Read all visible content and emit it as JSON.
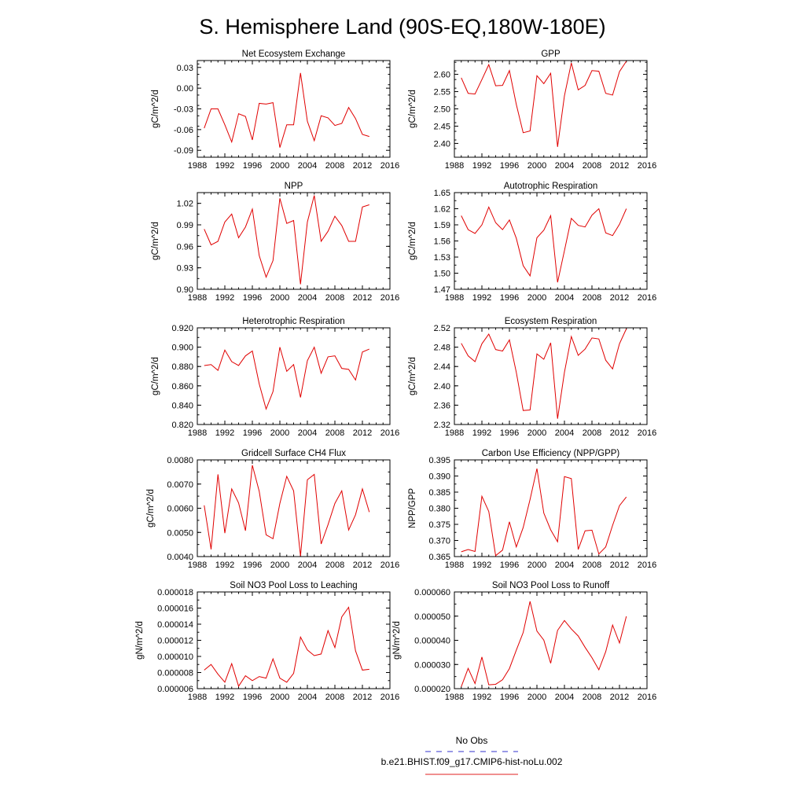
{
  "title": "S. Hemisphere Land (90S-EQ,180W-180E)",
  "legend": {
    "entries": [
      {
        "label": "No Obs",
        "color": "#3333cc",
        "dash": true
      },
      {
        "label": "b.e21.BHIST.f09_g17.CMIP6-hist-noLu.002",
        "color": "#e02020",
        "dash": false
      }
    ]
  },
  "series_color": "#e00000",
  "chart_data": [
    {
      "type": "line",
      "title": "Net Ecosystem Exchange",
      "ylabel": "gC/m^2/d",
      "xlim": [
        1988,
        2016
      ],
      "ylim": [
        -0.1,
        0.04
      ],
      "xticks": [
        "1988",
        "1992",
        "1996",
        "2000",
        "2004",
        "2008",
        "2012",
        "2016"
      ],
      "yticks": [
        "-0.09",
        "-0.06",
        "-0.03",
        "0.00",
        "0.03"
      ],
      "ytick_values": [
        -0.09,
        -0.06,
        -0.03,
        0.0,
        0.03
      ],
      "x": [
        1989,
        1990,
        1991,
        1992,
        1993,
        1994,
        1995,
        1996,
        1997,
        1998,
        1999,
        2000,
        2001,
        2002,
        2003,
        2004,
        2005,
        2006,
        2007,
        2008,
        2009,
        2010,
        2011,
        2012,
        2013
      ],
      "values": [
        -0.058,
        -0.03,
        -0.03,
        -0.053,
        -0.078,
        -0.037,
        -0.041,
        -0.075,
        -0.022,
        -0.023,
        -0.021,
        -0.086,
        -0.053,
        -0.053,
        0.022,
        -0.048,
        -0.076,
        -0.04,
        -0.043,
        -0.054,
        -0.051,
        -0.028,
        -0.044,
        -0.067,
        -0.07
      ]
    },
    {
      "type": "line",
      "title": "GPP",
      "ylabel": "gC/m^2/d",
      "xlim": [
        1988,
        2016
      ],
      "ylim": [
        2.36,
        2.64
      ],
      "xticks": [
        "1988",
        "1992",
        "1996",
        "2000",
        "2004",
        "2008",
        "2012",
        "2016"
      ],
      "yticks": [
        "2.40",
        "2.45",
        "2.50",
        "2.55",
        "2.60"
      ],
      "ytick_values": [
        2.4,
        2.45,
        2.5,
        2.55,
        2.6
      ],
      "x": [
        1989,
        1990,
        1991,
        1992,
        1993,
        1994,
        1995,
        1996,
        1997,
        1998,
        1999,
        2000,
        2001,
        2002,
        2003,
        2004,
        2005,
        2006,
        2007,
        2008,
        2009,
        2010,
        2011,
        2012,
        2013
      ],
      "values": [
        2.59,
        2.545,
        2.543,
        2.585,
        2.628,
        2.567,
        2.568,
        2.611,
        2.513,
        2.431,
        2.436,
        2.596,
        2.573,
        2.603,
        2.39,
        2.538,
        2.633,
        2.555,
        2.568,
        2.611,
        2.609,
        2.545,
        2.54,
        2.608,
        2.638
      ]
    },
    {
      "type": "line",
      "title": "NPP",
      "ylabel": "gC/m^2/d",
      "xlim": [
        1988,
        2016
      ],
      "ylim": [
        0.9,
        1.035
      ],
      "xticks": [
        "1988",
        "1992",
        "1996",
        "2000",
        "2004",
        "2008",
        "2012",
        "2016"
      ],
      "yticks": [
        "0.90",
        "0.93",
        "0.96",
        "0.99",
        "1.02"
      ],
      "ytick_values": [
        0.9,
        0.93,
        0.96,
        0.99,
        1.02
      ],
      "x": [
        1989,
        1990,
        1991,
        1992,
        1993,
        1994,
        1995,
        1996,
        1997,
        1998,
        1999,
        2000,
        2001,
        2002,
        2003,
        2004,
        2005,
        2006,
        2007,
        2008,
        2009,
        2010,
        2011,
        2012,
        2013
      ],
      "values": [
        0.984,
        0.962,
        0.967,
        0.994,
        1.005,
        0.972,
        0.987,
        1.012,
        0.947,
        0.917,
        0.94,
        1.027,
        0.992,
        0.996,
        0.907,
        0.994,
        1.031,
        0.967,
        0.981,
        1.002,
        0.989,
        0.967,
        0.967,
        1.015,
        1.018
      ]
    },
    {
      "type": "line",
      "title": "Autotrophic Respiration",
      "ylabel": "gC/m^2/d",
      "xlim": [
        1988,
        2016
      ],
      "ylim": [
        1.47,
        1.65
      ],
      "xticks": [
        "1988",
        "1992",
        "1996",
        "2000",
        "2004",
        "2008",
        "2012",
        "2016"
      ],
      "yticks": [
        "1.47",
        "1.50",
        "1.53",
        "1.56",
        "1.59",
        "1.62",
        "1.65"
      ],
      "ytick_values": [
        1.47,
        1.5,
        1.53,
        1.56,
        1.59,
        1.62,
        1.65
      ],
      "x": [
        1989,
        1990,
        1991,
        1992,
        1993,
        1994,
        1995,
        1996,
        1997,
        1998,
        1999,
        2000,
        2001,
        2002,
        2003,
        2004,
        2005,
        2006,
        2007,
        2008,
        2009,
        2010,
        2011,
        2012,
        2013
      ],
      "values": [
        1.607,
        1.581,
        1.574,
        1.59,
        1.623,
        1.594,
        1.581,
        1.599,
        1.565,
        1.514,
        1.495,
        1.566,
        1.58,
        1.607,
        1.483,
        1.542,
        1.602,
        1.589,
        1.586,
        1.608,
        1.62,
        1.575,
        1.57,
        1.591,
        1.62
      ]
    },
    {
      "type": "line",
      "title": "Heterotrophic Respiration",
      "ylabel": "gC/m^2/d",
      "xlim": [
        1988,
        2016
      ],
      "ylim": [
        0.82,
        0.92
      ],
      "xticks": [
        "1988",
        "1992",
        "1996",
        "2000",
        "2004",
        "2008",
        "2012",
        "2016"
      ],
      "yticks": [
        "0.820",
        "0.840",
        "0.860",
        "0.880",
        "0.900",
        "0.920"
      ],
      "ytick_values": [
        0.82,
        0.84,
        0.86,
        0.88,
        0.9,
        0.92
      ],
      "x": [
        1989,
        1990,
        1991,
        1992,
        1993,
        1994,
        1995,
        1996,
        1997,
        1998,
        1999,
        2000,
        2001,
        2002,
        2003,
        2004,
        2005,
        2006,
        2007,
        2008,
        2009,
        2010,
        2011,
        2012,
        2013
      ],
      "values": [
        0.881,
        0.882,
        0.876,
        0.897,
        0.885,
        0.881,
        0.891,
        0.896,
        0.862,
        0.836,
        0.854,
        0.9,
        0.875,
        0.882,
        0.848,
        0.886,
        0.9,
        0.873,
        0.89,
        0.891,
        0.878,
        0.877,
        0.866,
        0.895,
        0.898
      ]
    },
    {
      "type": "line",
      "title": "Ecosystem Respiration",
      "ylabel": "gC/m^2/d",
      "xlim": [
        1988,
        2016
      ],
      "ylim": [
        2.32,
        2.52
      ],
      "xticks": [
        "1988",
        "1992",
        "1996",
        "2000",
        "2004",
        "2008",
        "2012",
        "2016"
      ],
      "yticks": [
        "2.32",
        "2.36",
        "2.40",
        "2.44",
        "2.48",
        "2.52"
      ],
      "ytick_values": [
        2.32,
        2.36,
        2.4,
        2.44,
        2.48,
        2.52
      ],
      "x": [
        1989,
        1990,
        1991,
        1992,
        1993,
        1994,
        1995,
        1996,
        1997,
        1998,
        1999,
        2000,
        2001,
        2002,
        2003,
        2004,
        2005,
        2006,
        2007,
        2008,
        2009,
        2010,
        2011,
        2012,
        2013
      ],
      "values": [
        2.488,
        2.462,
        2.45,
        2.487,
        2.507,
        2.475,
        2.472,
        2.495,
        2.428,
        2.349,
        2.35,
        2.466,
        2.455,
        2.489,
        2.332,
        2.428,
        2.502,
        2.463,
        2.476,
        2.499,
        2.497,
        2.453,
        2.435,
        2.487,
        2.518
      ]
    },
    {
      "type": "line",
      "title": "Gridcell Surface CH4 Flux",
      "ylabel": "gC/m^2/d",
      "xlim": [
        1988,
        2016
      ],
      "ylim": [
        0.004,
        0.008
      ],
      "xticks": [
        "1988",
        "1992",
        "1996",
        "2000",
        "2004",
        "2008",
        "2012",
        "2016"
      ],
      "yticks": [
        "0.0040",
        "0.0050",
        "0.0060",
        "0.0070",
        "0.0080"
      ],
      "ytick_values": [
        0.004,
        0.005,
        0.006,
        0.007,
        0.008
      ],
      "x": [
        1989,
        1990,
        1991,
        1992,
        1993,
        1994,
        1995,
        1996,
        1997,
        1998,
        1999,
        2000,
        2001,
        2002,
        2003,
        2004,
        2005,
        2006,
        2007,
        2008,
        2009,
        2010,
        2011,
        2012,
        2013
      ],
      "values": [
        0.00612,
        0.0043,
        0.0074,
        0.00497,
        0.0068,
        0.00622,
        0.00507,
        0.00778,
        0.0067,
        0.0049,
        0.00474,
        0.0062,
        0.00732,
        0.00672,
        0.00402,
        0.00718,
        0.0074,
        0.00452,
        0.00532,
        0.0062,
        0.00672,
        0.0051,
        0.00573,
        0.0068,
        0.00584
      ]
    },
    {
      "type": "line",
      "title": "Carbon Use Efficiency (NPP/GPP)",
      "ylabel": "NPP/GPP",
      "xlim": [
        1988,
        2016
      ],
      "ylim": [
        0.365,
        0.395
      ],
      "xticks": [
        "1988",
        "1992",
        "1996",
        "2000",
        "2004",
        "2008",
        "2012",
        "2016"
      ],
      "yticks": [
        "0.365",
        "0.370",
        "0.375",
        "0.380",
        "0.385",
        "0.390",
        "0.395"
      ],
      "ytick_values": [
        0.365,
        0.37,
        0.375,
        0.38,
        0.385,
        0.39,
        0.395
      ],
      "x": [
        1989,
        1990,
        1991,
        1992,
        1993,
        1994,
        1995,
        1996,
        1997,
        1998,
        1999,
        2000,
        2001,
        2002,
        2003,
        2004,
        2005,
        2006,
        2007,
        2008,
        2009,
        2010,
        2011,
        2012,
        2013
      ],
      "values": [
        0.3665,
        0.3672,
        0.3666,
        0.3837,
        0.379,
        0.3653,
        0.367,
        0.3758,
        0.368,
        0.374,
        0.3827,
        0.3923,
        0.3785,
        0.3733,
        0.3696,
        0.3898,
        0.3892,
        0.3672,
        0.373,
        0.3732,
        0.3658,
        0.368,
        0.3747,
        0.3808,
        0.3835
      ]
    },
    {
      "type": "line",
      "title": "Soil NO3 Pool Loss to Leaching",
      "ylabel": "gN/m^2/d",
      "xlim": [
        1988,
        2016
      ],
      "ylim": [
        6e-06,
        1.8e-05
      ],
      "xticks": [
        "1988",
        "1992",
        "1996",
        "2000",
        "2004",
        "2008",
        "2012",
        "2016"
      ],
      "yticks": [
        "0.000006",
        "0.000008",
        "0.000010",
        "0.000012",
        "0.000014",
        "0.000016",
        "0.000018"
      ],
      "ytick_values": [
        6e-06,
        8e-06,
        1e-05,
        1.2e-05,
        1.4e-05,
        1.6e-05,
        1.8e-05
      ],
      "x": [
        1989,
        1990,
        1991,
        1992,
        1993,
        1994,
        1995,
        1996,
        1997,
        1998,
        1999,
        2000,
        2001,
        2002,
        2003,
        2004,
        2005,
        2006,
        2007,
        2008,
        2009,
        2010,
        2011,
        2012,
        2013
      ],
      "values": [
        8.3e-06,
        9e-06,
        7.8e-06,
        6.8e-06,
        9.1e-06,
        6.3e-06,
        7.6e-06,
        7e-06,
        7.5e-06,
        7.3e-06,
        9.7e-06,
        7.3e-06,
        6.8e-06,
        7.9e-06,
        1.24e-05,
        1.08e-05,
        1.01e-05,
        1.03e-05,
        1.32e-05,
        1.11e-05,
        1.49e-05,
        1.61e-05,
        1.07e-05,
        8.3e-06,
        8.4e-06
      ]
    },
    {
      "type": "line",
      "title": "Soil NO3 Pool Loss to Runoff",
      "ylabel": "gN/m^2/d",
      "xlim": [
        1988,
        2016
      ],
      "ylim": [
        2e-05,
        6e-05
      ],
      "xticks": [
        "1988",
        "1992",
        "1996",
        "2000",
        "2004",
        "2008",
        "2012",
        "2016"
      ],
      "yticks": [
        "0.000020",
        "0.000030",
        "0.000040",
        "0.000050",
        "0.000060"
      ],
      "ytick_values": [
        2e-05,
        3e-05,
        4e-05,
        5e-05,
        6e-05
      ],
      "x": [
        1989,
        1990,
        1991,
        1992,
        1993,
        1994,
        1995,
        1996,
        1997,
        1998,
        1999,
        2000,
        2001,
        2002,
        2003,
        2004,
        2005,
        2006,
        2007,
        2008,
        2009,
        2010,
        2011,
        2012,
        2013
      ],
      "values": [
        2.08e-05,
        2.84e-05,
        2.21e-05,
        3.31e-05,
        2.16e-05,
        2.18e-05,
        2.37e-05,
        2.83e-05,
        3.59e-05,
        4.32e-05,
        5.61e-05,
        4.38e-05,
        4.01e-05,
        3.05e-05,
        4.41e-05,
        4.82e-05,
        4.47e-05,
        4.18e-05,
        3.71e-05,
        3.28e-05,
        2.78e-05,
        3.53e-05,
        4.63e-05,
        3.89e-05,
        4.99e-05
      ]
    }
  ]
}
